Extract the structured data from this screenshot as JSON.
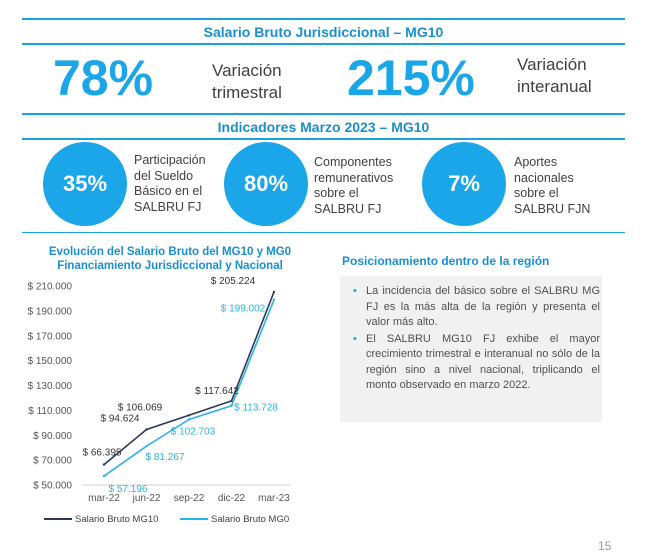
{
  "header": {
    "title": "Salario Bruto Jurisdiccional – MG10"
  },
  "kpis": [
    {
      "value": "78%",
      "label_line1": "Variación",
      "label_line2": "trimestral"
    },
    {
      "value": "215%",
      "label_line1": "Variación",
      "label_line2": "interanual"
    }
  ],
  "indicators": {
    "title": "Indicadores Marzo 2023 – MG10",
    "items": [
      {
        "value": "35%",
        "lines": [
          "Participación",
          "del Sueldo",
          "Básico en el",
          "SALBRU FJ"
        ]
      },
      {
        "value": "80%",
        "lines": [
          "Componentes",
          "remunerativos",
          "sobre el",
          "SALBRU FJ"
        ]
      },
      {
        "value": "7%",
        "lines": [
          "Aportes",
          "nacionales",
          "sobre el",
          "SALBRU FJN"
        ]
      }
    ]
  },
  "chart_data": {
    "type": "line",
    "title_line1": "Evolución del Salario Bruto del MG10 y MG0",
    "title_line2": "Financiamiento Jurisdiccional y Nacional",
    "categories": [
      "mar-22",
      "jun-22",
      "sep-22",
      "dic-22",
      "mar-23"
    ],
    "series": [
      {
        "name": "Salario Bruto MG10",
        "color": "#2b3a55",
        "values": [
          66395,
          94624,
          106069,
          117642,
          205224
        ],
        "labels": [
          "$ 66.395",
          "$ 94.624",
          "$ 106.069",
          "$ 117.642",
          "$ 205.224"
        ]
      },
      {
        "name": "Salario Bruto MG0",
        "color": "#2ab3e6",
        "values": [
          57196,
          81267,
          102703,
          113728,
          199002
        ],
        "labels": [
          "$ 57.196",
          "$ 81.267",
          "$ 102.703",
          "$ 113.728",
          "$ 199.002"
        ]
      }
    ],
    "yticks": [
      50000,
      70000,
      90000,
      110000,
      130000,
      150000,
      170000,
      190000,
      210000
    ],
    "ytick_labels": [
      "$ 50.000",
      "$ 70.000",
      "$ 90.000",
      "$ 110.000",
      "$ 130.000",
      "$ 150.000",
      "$ 170.000",
      "$ 190.000",
      "$ 210.000"
    ],
    "ylim": [
      50000,
      210000
    ],
    "legend": "bottom"
  },
  "region": {
    "title": "Posicionamiento dentro de la región",
    "bullets": [
      "La incidencia del básico sobre el SALBRU MG FJ es la más alta de la región y presenta el valor más alto.",
      "El SALBRU MG10 FJ exhibe el mayor crecimiento trimestral e interanual no sólo de la región sino a nivel nacional, triplicando el monto observado en marzo 2022."
    ]
  },
  "page_number": "15"
}
